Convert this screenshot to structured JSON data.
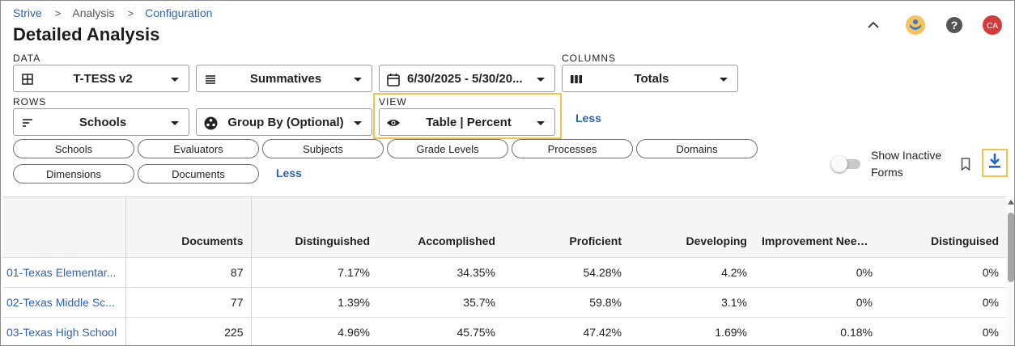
{
  "breadcrumb": {
    "items": [
      "Strive",
      "Analysis",
      "Configuration"
    ],
    "separator": ">"
  },
  "page_title": "Detailed Analysis",
  "header_icons": [
    "chevron-up-icon",
    "logo-icon",
    "help-icon",
    "avatar"
  ],
  "user": {
    "initials": "CA",
    "avatar_color": "#d63b3b"
  },
  "filters": {
    "data_label": "DATA",
    "columns_label": "COLUMNS",
    "rows_label": "ROWS",
    "view_label": "VIEW",
    "form": "T-TESS v2",
    "type": "Summatives",
    "date_range": "6/30/2025 - 5/30/20...",
    "columns": "Totals",
    "rows": "Schools",
    "group_by": "Group By (Optional)",
    "view": "Table | Percent",
    "less_label": "Less"
  },
  "chips": [
    "Schools",
    "Evaluators",
    "Subjects",
    "Grade Levels",
    "Processes",
    "Domains",
    "Dimensions",
    "Documents"
  ],
  "chips_less_label": "Less",
  "show_inactive_label": "Show Inactive Forms",
  "show_inactive_on": false,
  "accent_highlight": "#f0c34a",
  "link_color": "#2f63b5",
  "table": {
    "columns": [
      "",
      "Documents",
      "Distinguished",
      "Accomplished",
      "Proficient",
      "Developing",
      "Improvement Needed",
      "Distinguised"
    ],
    "rows": [
      {
        "name": "01-Texas Elementar...",
        "cells": [
          "87",
          "7.17%",
          "34.35%",
          "54.28%",
          "4.2%",
          "0%",
          "0%"
        ]
      },
      {
        "name": "02-Texas Middle Sc...",
        "cells": [
          "77",
          "1.39%",
          "35.7%",
          "59.8%",
          "3.1%",
          "0%",
          "0%"
        ]
      },
      {
        "name": "03-Texas High School",
        "cells": [
          "225",
          "4.96%",
          "45.75%",
          "47.42%",
          "1.69%",
          "0.18%",
          "0%"
        ]
      }
    ]
  }
}
